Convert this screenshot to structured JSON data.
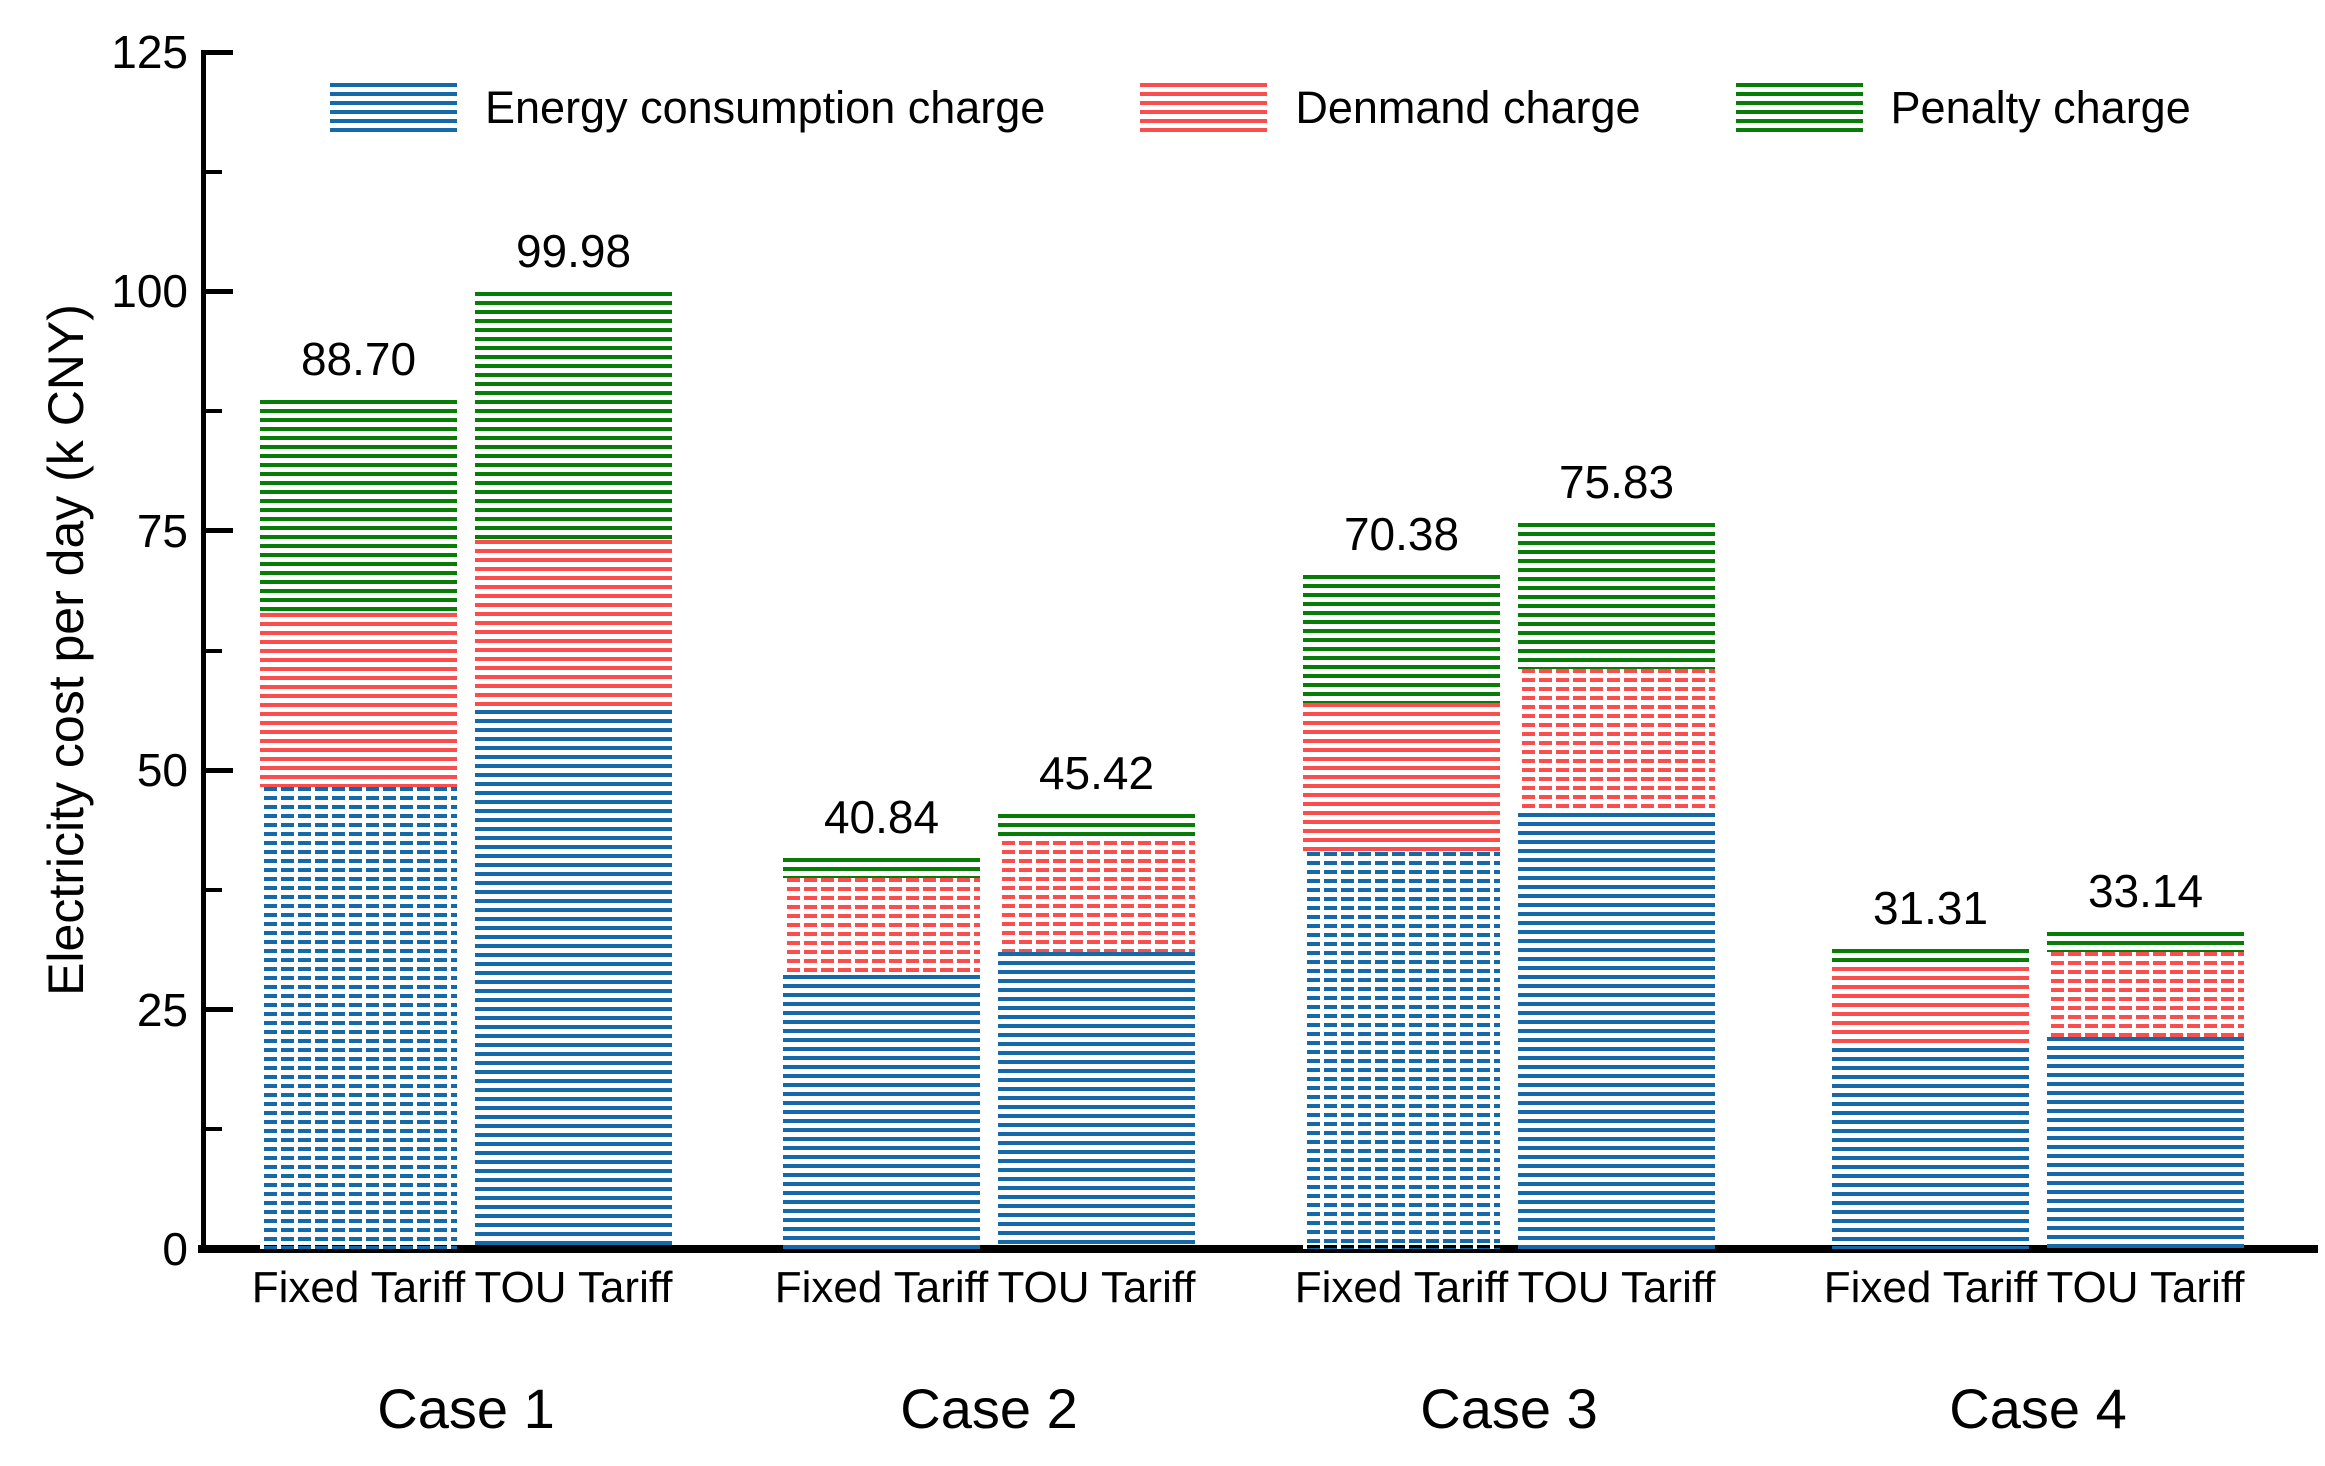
{
  "chart_data": {
    "type": "bar",
    "stacked": true,
    "title": "",
    "xlabel": "",
    "ylabel": "Electricity cost per day (k CNY)",
    "ylim": [
      0,
      125
    ],
    "yticks": [
      0,
      25,
      50,
      75,
      100,
      125
    ],
    "yticks_minor": [
      12.5,
      37.5,
      62.5,
      87.5,
      112.5
    ],
    "grid": false,
    "legend_position": "top",
    "series": [
      {
        "name": "Energy consumption charge",
        "color": "#1569A9"
      },
      {
        "name": "Denmand charge",
        "color": "#FA4D4D"
      },
      {
        "name": "Penalty charge",
        "color": "#077D07"
      }
    ],
    "groups": [
      {
        "label": "Case 1",
        "bars": [
          {
            "label": "Fixed Tariff",
            "total": 88.7,
            "total_label": "88.70",
            "values": [
              48.2,
              18.2,
              22.3
            ],
            "hatch": [
              "dashed",
              "solid",
              "solid"
            ]
          },
          {
            "label": "TOU Tariff",
            "total": 99.98,
            "total_label": "99.98",
            "values": [
              56.3,
              17.7,
              25.98
            ],
            "hatch": [
              "solid",
              "solid",
              "solid"
            ]
          }
        ]
      },
      {
        "label": "Case 2",
        "bars": [
          {
            "label": "Fixed Tariff",
            "total": 40.84,
            "total_label": "40.84",
            "values": [
              28.6,
              10.14,
              2.1
            ],
            "hatch": [
              "solid",
              "dashed",
              "solid"
            ]
          },
          {
            "label": "TOU Tariff",
            "total": 45.42,
            "total_label": "45.42",
            "values": [
              31.0,
              11.6,
              2.82
            ],
            "hatch": [
              "solid",
              "dashed",
              "solid"
            ]
          }
        ]
      },
      {
        "label": "Case 3",
        "bars": [
          {
            "label": "Fixed Tariff",
            "total": 70.38,
            "total_label": "70.38",
            "values": [
              41.5,
              15.5,
              13.38
            ],
            "hatch": [
              "dashed",
              "solid",
              "solid"
            ]
          },
          {
            "label": "TOU Tariff",
            "total": 75.83,
            "total_label": "75.83",
            "values": [
              45.5,
              15.1,
              15.23
            ],
            "hatch": [
              "solid",
              "dashed",
              "solid"
            ]
          }
        ]
      },
      {
        "label": "Case 4",
        "bars": [
          {
            "label": "Fixed Tariff",
            "total": 31.31,
            "total_label": "31.31",
            "values": [
              21.0,
              8.4,
              1.91
            ],
            "hatch": [
              "solid",
              "solid",
              "solid"
            ]
          },
          {
            "label": "TOU Tariff",
            "total": 33.14,
            "total_label": "33.14",
            "values": [
              22.1,
              8.9,
              2.14
            ],
            "hatch": [
              "solid",
              "dashed",
              "solid"
            ]
          }
        ]
      }
    ]
  }
}
